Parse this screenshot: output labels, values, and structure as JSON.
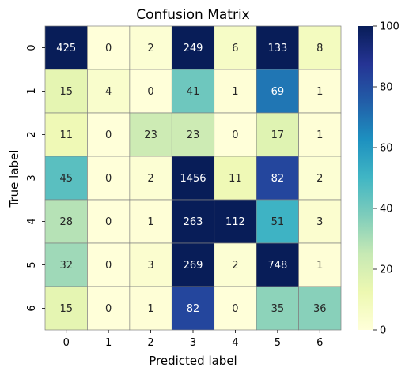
{
  "chart_data": {
    "type": "heatmap",
    "title": "Confusion Matrix",
    "xlabel": "Predicted label",
    "ylabel": "True label",
    "x_categories": [
      "0",
      "1",
      "2",
      "3",
      "4",
      "5",
      "6"
    ],
    "y_categories": [
      "0",
      "1",
      "2",
      "3",
      "4",
      "5",
      "6"
    ],
    "values": [
      [
        425,
        0,
        2,
        249,
        6,
        133,
        8
      ],
      [
        15,
        4,
        0,
        41,
        1,
        69,
        1
      ],
      [
        11,
        0,
        23,
        23,
        0,
        17,
        1
      ],
      [
        45,
        0,
        2,
        1456,
        11,
        82,
        2
      ],
      [
        28,
        0,
        1,
        263,
        112,
        51,
        3
      ],
      [
        32,
        0,
        3,
        269,
        2,
        748,
        1
      ],
      [
        15,
        0,
        1,
        82,
        0,
        35,
        36
      ]
    ],
    "color_range": [
      0,
      100
    ],
    "colormap": "YlGnBu",
    "colorbar_ticks": [
      "0",
      "20",
      "40",
      "60",
      "80",
      "100"
    ],
    "grid_line_color": "#808080"
  }
}
